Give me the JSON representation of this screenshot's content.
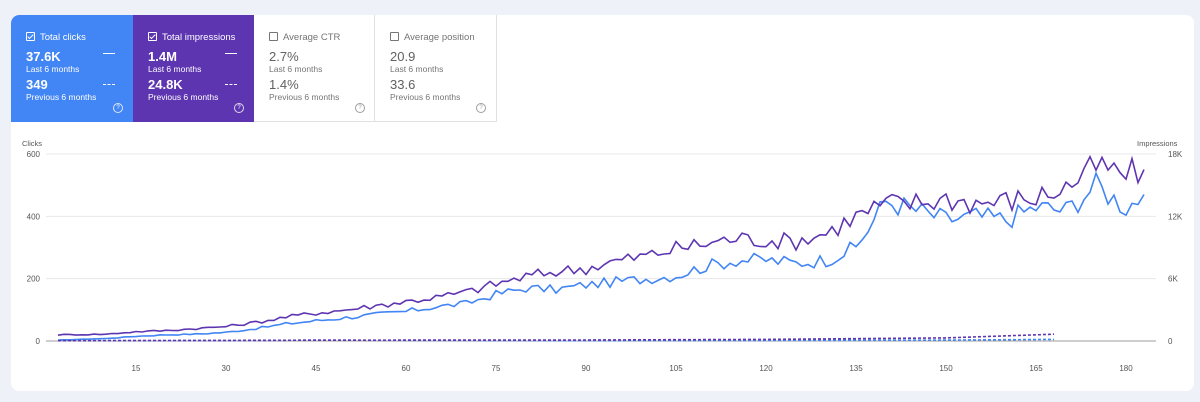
{
  "metrics": [
    {
      "name": "Total clicks",
      "checked": true,
      "value": "37.6K",
      "period": "Last 6 months",
      "prev_value": "349",
      "prev_period": "Previous 6 months"
    },
    {
      "name": "Total impressions",
      "checked": true,
      "value": "1.4M",
      "period": "Last 6 months",
      "prev_value": "24.8K",
      "prev_period": "Previous 6 months"
    },
    {
      "name": "Average CTR",
      "checked": false,
      "value": "2.7%",
      "period": "Last 6 months",
      "prev_value": "1.4%",
      "prev_period": "Previous 6 months"
    },
    {
      "name": "Average position",
      "checked": false,
      "value": "20.9",
      "period": "Last 6 months",
      "prev_value": "33.6",
      "prev_period": "Previous 6 months"
    }
  ],
  "help_glyph": "?",
  "chart_data": {
    "type": "line",
    "xlabel": "",
    "left_axis": {
      "label": "Clicks",
      "ticks": [
        "0",
        "200",
        "400",
        "600"
      ],
      "range": [
        0,
        600
      ]
    },
    "right_axis": {
      "label": "Impressions",
      "ticks": [
        "0",
        "6K",
        "12K",
        "18K"
      ],
      "range": [
        0,
        18000
      ]
    },
    "x_ticks": [
      15,
      30,
      45,
      60,
      75,
      90,
      105,
      120,
      135,
      150,
      165,
      180
    ],
    "x_range": [
      0,
      185
    ],
    "colors": {
      "clicks": "#4285f4",
      "impressions": "#5e35b1"
    },
    "series": [
      {
        "name": "Total clicks",
        "style": "solid",
        "axis": "left",
        "color": "#4285f4",
        "points": [
          [
            2,
            3
          ],
          [
            10,
            8
          ],
          [
            15,
            15
          ],
          [
            20,
            20
          ],
          [
            25,
            22
          ],
          [
            30,
            28
          ],
          [
            35,
            40
          ],
          [
            40,
            55
          ],
          [
            45,
            65
          ],
          [
            50,
            75
          ],
          [
            55,
            85
          ],
          [
            60,
            95
          ],
          [
            65,
            110
          ],
          [
            70,
            120
          ],
          [
            75,
            150
          ],
          [
            80,
            170
          ],
          [
            85,
            165
          ],
          [
            90,
            180
          ],
          [
            95,
            190
          ],
          [
            100,
            200
          ],
          [
            105,
            210
          ],
          [
            110,
            240
          ],
          [
            115,
            260
          ],
          [
            120,
            260
          ],
          [
            125,
            250
          ],
          [
            130,
            260
          ],
          [
            135,
            300
          ],
          [
            140,
            450
          ],
          [
            145,
            420
          ],
          [
            150,
            390
          ],
          [
            155,
            400
          ],
          [
            160,
            390
          ],
          [
            165,
            430
          ],
          [
            170,
            420
          ],
          [
            175,
            500
          ],
          [
            180,
            430
          ],
          [
            183,
            470
          ]
        ]
      },
      {
        "name": "Total impressions",
        "style": "solid",
        "axis": "right",
        "color": "#5e35b1",
        "points": [
          [
            2,
            600
          ],
          [
            10,
            650
          ],
          [
            15,
            900
          ],
          [
            20,
            1000
          ],
          [
            25,
            1200
          ],
          [
            30,
            1400
          ],
          [
            35,
            1800
          ],
          [
            40,
            2300
          ],
          [
            45,
            2700
          ],
          [
            50,
            3000
          ],
          [
            55,
            3400
          ],
          [
            60,
            3800
          ],
          [
            65,
            4200
          ],
          [
            70,
            4700
          ],
          [
            75,
            5500
          ],
          [
            80,
            6200
          ],
          [
            85,
            6700
          ],
          [
            90,
            7000
          ],
          [
            95,
            7700
          ],
          [
            100,
            8200
          ],
          [
            105,
            8900
          ],
          [
            110,
            9400
          ],
          [
            115,
            9900
          ],
          [
            120,
            9700
          ],
          [
            125,
            9600
          ],
          [
            130,
            10400
          ],
          [
            135,
            12000
          ],
          [
            140,
            13200
          ],
          [
            145,
            13300
          ],
          [
            150,
            13700
          ],
          [
            155,
            13300
          ],
          [
            160,
            13500
          ],
          [
            165,
            13800
          ],
          [
            170,
            14800
          ],
          [
            175,
            16800
          ],
          [
            180,
            16000
          ],
          [
            183,
            16500
          ]
        ]
      },
      {
        "name": "Total clicks",
        "style": "dashed",
        "axis": "left",
        "color": "#4285f4",
        "points": [
          [
            2,
            1
          ],
          [
            30,
            1
          ],
          [
            45,
            3
          ],
          [
            60,
            2
          ],
          [
            90,
            1
          ],
          [
            120,
            2
          ],
          [
            150,
            3
          ],
          [
            168,
            5
          ]
        ]
      },
      {
        "name": "Total impressions",
        "style": "dashed",
        "axis": "right",
        "color": "#5e35b1",
        "points": [
          [
            2,
            30
          ],
          [
            30,
            60
          ],
          [
            45,
            80
          ],
          [
            60,
            90
          ],
          [
            90,
            100
          ],
          [
            120,
            150
          ],
          [
            150,
            300
          ],
          [
            168,
            650
          ]
        ]
      }
    ]
  }
}
